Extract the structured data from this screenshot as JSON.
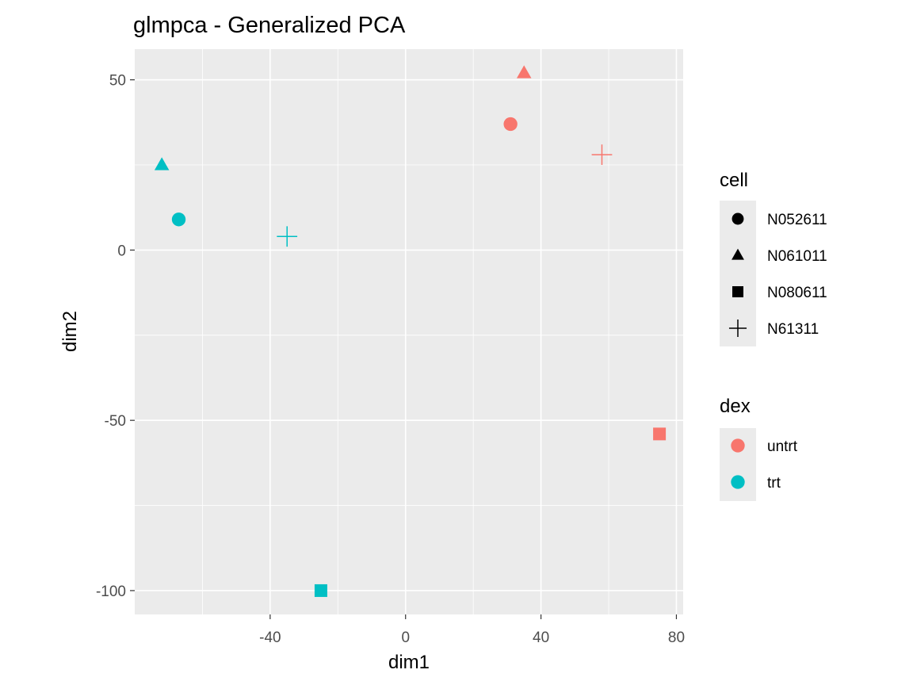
{
  "chart_data": {
    "type": "scatter",
    "title": "glmpca - Generalized PCA",
    "xlabel": "dim1",
    "ylabel": "dim2",
    "xlim": [
      -80,
      82
    ],
    "ylim": [
      -107,
      59
    ],
    "x_ticks": [
      -40,
      0,
      40,
      80
    ],
    "y_ticks": [
      -100,
      -50,
      0,
      50
    ],
    "x_tick_labels": [
      "-40",
      "0",
      "40",
      "80"
    ],
    "y_tick_labels": [
      "-100",
      "-50",
      "0",
      "50"
    ],
    "grid": true,
    "legend_position": "right",
    "points": [
      {
        "x": 31,
        "y": 37,
        "cell": "N052611",
        "dex": "untrt"
      },
      {
        "x": 35,
        "y": 52,
        "cell": "N061011",
        "dex": "untrt"
      },
      {
        "x": 75,
        "y": -54,
        "cell": "N080611",
        "dex": "untrt"
      },
      {
        "x": 58,
        "y": 28,
        "cell": "N61311",
        "dex": "untrt"
      },
      {
        "x": -67,
        "y": 9,
        "cell": "N052611",
        "dex": "trt"
      },
      {
        "x": -72,
        "y": 25,
        "cell": "N061011",
        "dex": "trt"
      },
      {
        "x": -25,
        "y": -100,
        "cell": "N080611",
        "dex": "trt"
      },
      {
        "x": -35,
        "y": 4,
        "cell": "N61311",
        "dex": "trt"
      }
    ],
    "legend": {
      "shape": {
        "title": "cell",
        "items": [
          {
            "label": "N052611",
            "shape": "circle"
          },
          {
            "label": "N061011",
            "shape": "triangle"
          },
          {
            "label": "N080611",
            "shape": "square"
          },
          {
            "label": "N61311",
            "shape": "plus"
          }
        ]
      },
      "color": {
        "title": "dex",
        "items": [
          {
            "label": "untrt",
            "color": "#F8766D"
          },
          {
            "label": "trt",
            "color": "#00BFC4"
          }
        ]
      }
    },
    "colors": {
      "panel": "#EBEBEB",
      "grid": "#FFFFFF",
      "tick_text": "#4D4D4D"
    }
  }
}
